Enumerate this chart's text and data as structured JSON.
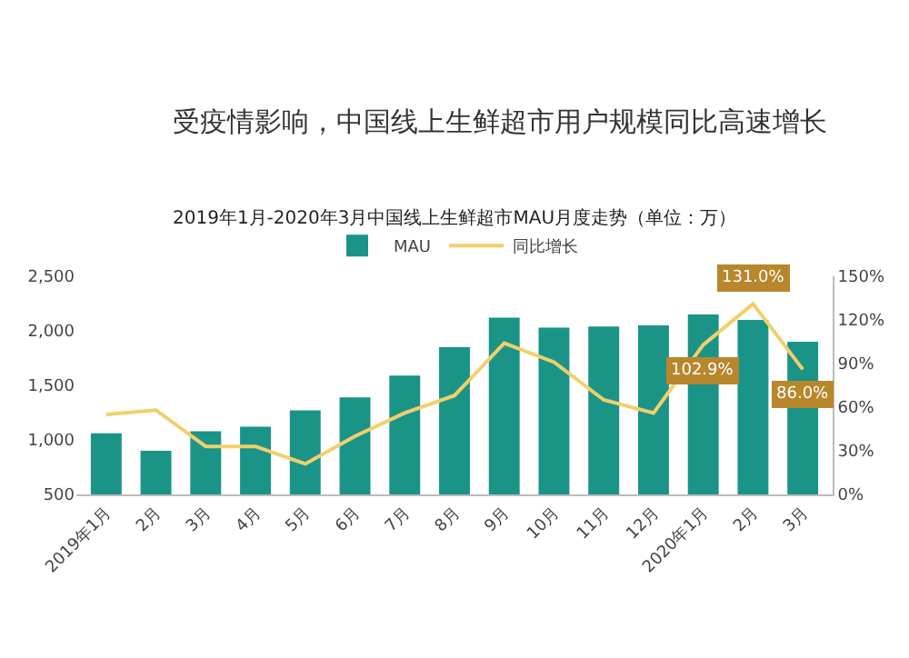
{
  "chart_data": {
    "type": "bar",
    "title": "受疫情影响，中国线上生鲜超市用户规模同比高速增长",
    "subtitle": "2019年1月-2020年3月中国线上生鲜超市MAU月度走势（单位：万）",
    "categories": [
      "2019年1月",
      "2月",
      "3月",
      "4月",
      "5月",
      "6月",
      "7月",
      "8月",
      "9月",
      "10月",
      "11月",
      "12月",
      "2020年1月",
      "2月",
      "3月"
    ],
    "series": [
      {
        "name": "MAU",
        "color": "#1b9488",
        "values": [
          1060,
          900,
          1080,
          1120,
          1270,
          1390,
          1590,
          1850,
          2120,
          2030,
          2040,
          2050,
          2150,
          2100,
          1900
        ]
      },
      {
        "name": "同比增长",
        "type": "line",
        "axis": "y2",
        "color": "#f2cf6b",
        "values": [
          55,
          58,
          33,
          33,
          21,
          40,
          56,
          68,
          104,
          91,
          65,
          56,
          102.9,
          131,
          86
        ],
        "value_labels": [
          null,
          null,
          null,
          null,
          null,
          null,
          null,
          null,
          null,
          null,
          null,
          null,
          "102.9%",
          "131.0%",
          "86.0%"
        ]
      }
    ],
    "ylim": [
      500,
      2500
    ],
    "yticks": [
      {
        "value": 500,
        "label": "500"
      },
      {
        "value": 1000,
        "label": "1,000"
      },
      {
        "value": 1500,
        "label": "1,500"
      },
      {
        "value": 2000,
        "label": "2,000"
      },
      {
        "value": 2500,
        "label": "2,500"
      }
    ],
    "y2lim": [
      0,
      150
    ],
    "y2ticks": [
      {
        "value": 0,
        "label": "0%"
      },
      {
        "value": 30,
        "label": "30%"
      },
      {
        "value": 60,
        "label": "60%"
      },
      {
        "value": 90,
        "label": "90%"
      },
      {
        "value": 120,
        "label": "120%"
      },
      {
        "value": 150,
        "label": "150%"
      }
    ],
    "grid": false,
    "legend": "top",
    "marker": "none"
  }
}
